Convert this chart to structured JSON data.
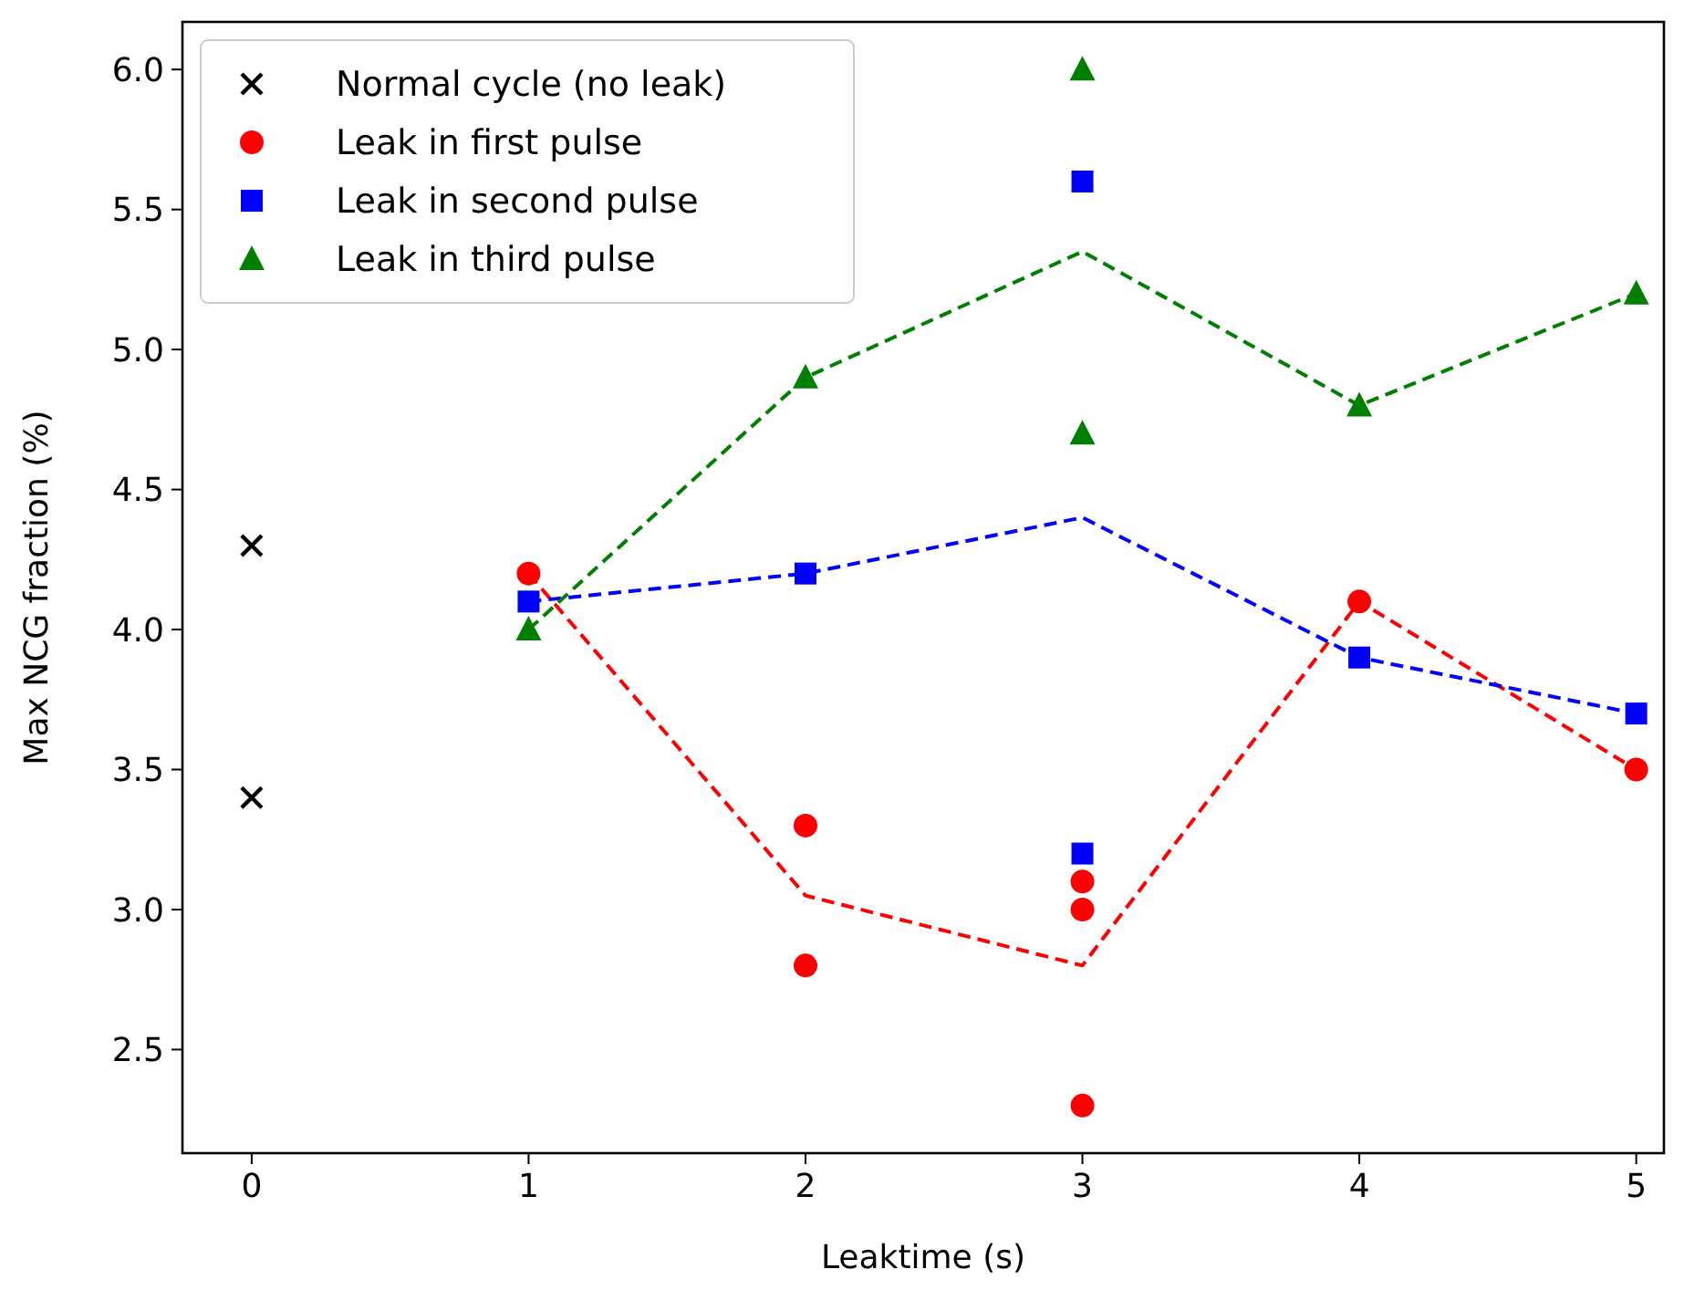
{
  "chart_data": {
    "type": "scatter",
    "xlabel": "Leaktime (s)",
    "ylabel": "Max NCG fraction (%)",
    "xlim": [
      -0.25,
      5.1
    ],
    "ylim": [
      2.13,
      6.17
    ],
    "xticks": [
      0,
      1,
      2,
      3,
      4,
      5
    ],
    "yticks": [
      2.5,
      {
        "value": 3,
        "label": "3.0"
      },
      3.5,
      {
        "value": 4,
        "label": "4.0"
      },
      4.5,
      {
        "value": 5,
        "label": "5.0"
      },
      5.5,
      {
        "value": 6,
        "label": "6.0"
      }
    ],
    "grid": false,
    "legend": "top left",
    "series": [
      {
        "name": "Normal cycle (no leak)",
        "color": "#000000",
        "marker": "cross",
        "x": [
          0,
          0
        ],
        "values": [
          4.3,
          3.4
        ]
      },
      {
        "name": "Leak in first pulse",
        "color": "#ff0000",
        "marker": "circle",
        "x": [
          1,
          2,
          2,
          3,
          3,
          3,
          4,
          5
        ],
        "values": [
          4.2,
          3.3,
          2.8,
          3.1,
          3.0,
          2.3,
          4.1,
          3.5
        ]
      },
      {
        "name": "Leak in second pulse",
        "color": "#0000ff",
        "marker": "square",
        "x": [
          1,
          2,
          3,
          3,
          4,
          5
        ],
        "values": [
          4.1,
          4.2,
          5.6,
          3.2,
          3.9,
          3.7
        ]
      },
      {
        "name": "Leak in third pulse",
        "color": "#008000",
        "marker": "triangle",
        "x": [
          1,
          2,
          3,
          3,
          4,
          5
        ],
        "values": [
          4.0,
          4.9,
          6.0,
          4.7,
          4.8,
          5.2
        ]
      },
      {
        "type": "line",
        "color": "#ff0000",
        "line_style": "dashed",
        "marker": "none",
        "x": [
          1,
          2,
          3,
          4,
          5
        ],
        "values": [
          4.2,
          3.05,
          2.8,
          4.1,
          3.5
        ]
      },
      {
        "type": "line",
        "color": "#0000ff",
        "line_style": "dashed",
        "marker": "none",
        "x": [
          1,
          2,
          3,
          4,
          5
        ],
        "values": [
          4.1,
          4.2,
          4.4,
          3.9,
          3.7
        ]
      },
      {
        "type": "line",
        "color": "#008000",
        "line_style": "dashed",
        "marker": "none",
        "x": [
          1,
          2,
          3,
          4,
          5
        ],
        "values": [
          4.0,
          4.9,
          5.35,
          4.8,
          5.2
        ]
      }
    ]
  }
}
